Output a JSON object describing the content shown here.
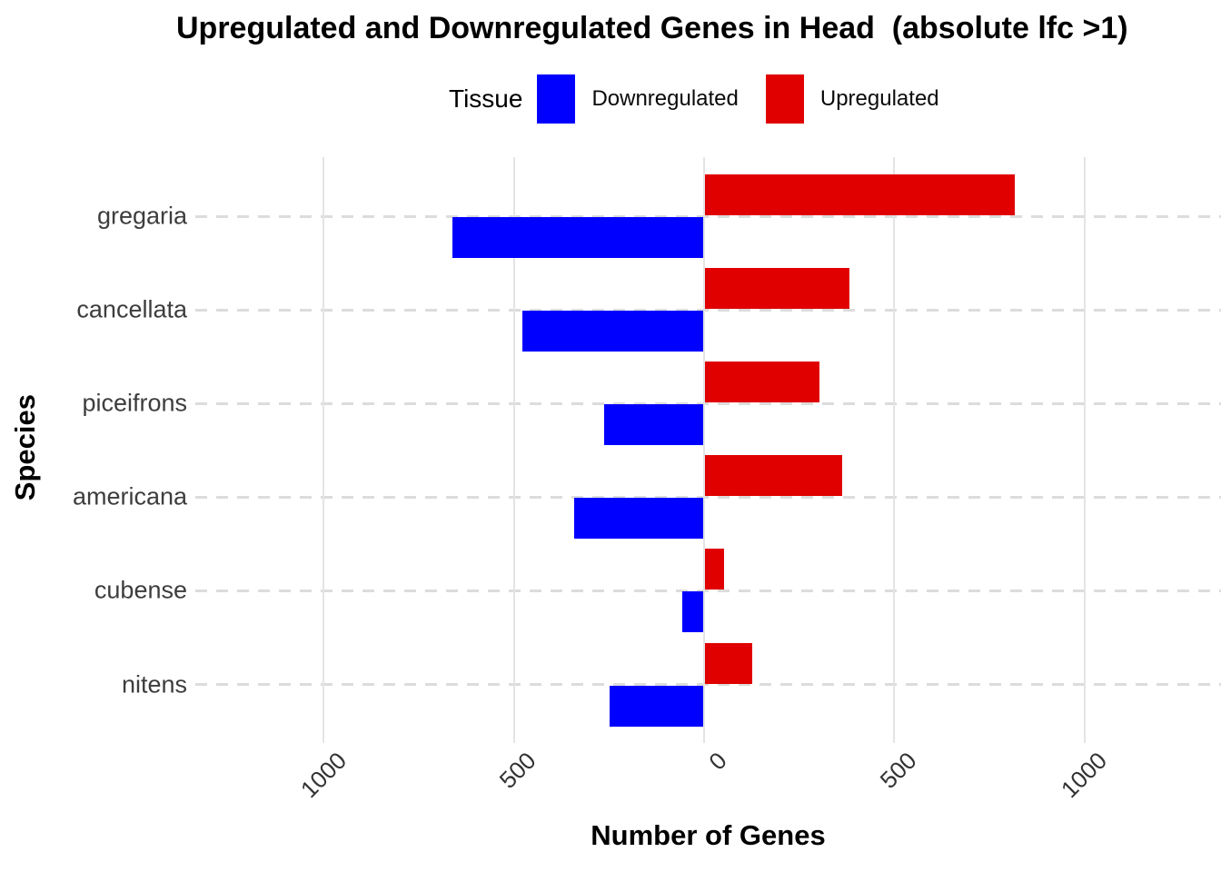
{
  "title": "Upregulated and Downregulated Genes in Head  (absolute lfc >1)",
  "legend": {
    "title": "Tissue",
    "items": [
      {
        "label": "Downregulated",
        "color": "#0000ff"
      },
      {
        "label": "Upregulated",
        "color": "#e00000"
      }
    ]
  },
  "x_axis": {
    "label": "Number of Genes",
    "ticks": [
      {
        "label": "1000",
        "value": -1000
      },
      {
        "label": "500",
        "value": -500
      },
      {
        "label": "0",
        "value": 0
      },
      {
        "label": "500",
        "value": 500
      },
      {
        "label": "1000",
        "value": 1000
      }
    ]
  },
  "y_axis": {
    "label": "Species"
  },
  "chart_data": {
    "type": "bar",
    "orientation": "horizontal-diverging",
    "title": "Upregulated and Downregulated Genes in Head  (absolute lfc >1)",
    "xlabel": "Number of Genes",
    "ylabel": "Species",
    "categories": [
      "gregaria",
      "cancellata",
      "piceifrons",
      "americana",
      "cubense",
      "nitens"
    ],
    "series": [
      {
        "name": "Downregulated",
        "color": "#0000ff",
        "direction": "left",
        "values": [
          660,
          475,
          260,
          340,
          55,
          245
        ]
      },
      {
        "name": "Upregulated",
        "color": "#e00000",
        "direction": "right",
        "values": [
          815,
          380,
          300,
          360,
          50,
          125
        ]
      }
    ],
    "xlim": [
      -1340,
      1360
    ],
    "x_tick_values": [
      -1000,
      -500,
      0,
      500,
      1000
    ],
    "grid": {
      "vertical": "solid",
      "horizontal": "dashed"
    },
    "legend_position": "top"
  }
}
